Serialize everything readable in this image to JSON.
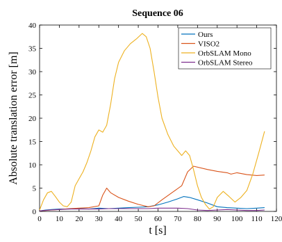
{
  "chart_data": {
    "type": "line",
    "title": "Sequence 06",
    "xlabel": "t [s]",
    "ylabel": "Absolute translation error [m]",
    "xlim": [
      0,
      120
    ],
    "ylim": [
      0,
      40
    ],
    "xticks": [
      0,
      10,
      20,
      30,
      40,
      50,
      60,
      70,
      80,
      90,
      100,
      110,
      120
    ],
    "yticks": [
      0,
      5,
      10,
      15,
      20,
      25,
      30,
      35,
      40
    ],
    "grid": false,
    "legend_position": "top-right",
    "series": [
      {
        "name": "Ours",
        "color": "#0072bd",
        "x": [
          0,
          3,
          6,
          10,
          15,
          20,
          25,
          30,
          35,
          40,
          45,
          50,
          55,
          60,
          65,
          70,
          73,
          76,
          80,
          85,
          90,
          95,
          100,
          105,
          110,
          114
        ],
        "y": [
          0.1,
          0.3,
          0.4,
          0.5,
          0.5,
          0.6,
          0.5,
          0.7,
          0.6,
          0.7,
          0.8,
          0.9,
          1.0,
          1.4,
          2.0,
          2.7,
          3.2,
          3.0,
          2.5,
          1.8,
          1.0,
          0.8,
          0.7,
          0.6,
          0.7,
          0.8
        ]
      },
      {
        "name": "VISO2",
        "color": "#d95319",
        "x": [
          0,
          3,
          6,
          10,
          15,
          20,
          25,
          30,
          32,
          34,
          36,
          40,
          45,
          50,
          55,
          58,
          62,
          67,
          72,
          75,
          78,
          85,
          90,
          95,
          97,
          100,
          105,
          110,
          114
        ],
        "y": [
          0.1,
          0.2,
          0.3,
          0.4,
          0.6,
          0.7,
          0.8,
          1.2,
          3.5,
          5.0,
          4.0,
          3.0,
          2.2,
          1.5,
          1.0,
          1.2,
          2.5,
          4.0,
          5.5,
          8.5,
          9.7,
          9.0,
          8.6,
          8.3,
          8.0,
          8.3,
          7.9,
          7.7,
          7.8
        ]
      },
      {
        "name": "OrbSLAM Mono",
        "color": "#edb120",
        "x": [
          0,
          2,
          4,
          6,
          8,
          10,
          12,
          14,
          16,
          18,
          20,
          22,
          24,
          26,
          28,
          30,
          32,
          34,
          36,
          38,
          40,
          43,
          46,
          49,
          52,
          54,
          56,
          58,
          60,
          62,
          65,
          68,
          70,
          72,
          74,
          76,
          78,
          80,
          82,
          84,
          86,
          88,
          90,
          93,
          96,
          99,
          102,
          105,
          108,
          111,
          114
        ],
        "y": [
          0.3,
          2.5,
          4.0,
          4.3,
          3.2,
          2.0,
          1.2,
          1.0,
          2.0,
          5.5,
          7.0,
          8.5,
          10.5,
          13.0,
          16.0,
          17.5,
          17.0,
          18.5,
          23.0,
          28.5,
          32.0,
          34.5,
          36.0,
          37.0,
          38.2,
          37.5,
          35.0,
          30.0,
          24.5,
          20.0,
          16.5,
          14.0,
          13.0,
          12.0,
          13.0,
          12.0,
          9.0,
          5.5,
          3.0,
          1.5,
          0.5,
          1.0,
          3.0,
          4.3,
          3.2,
          2.0,
          3.0,
          4.5,
          8.0,
          12.5,
          17.2
        ]
      },
      {
        "name": "OrbSLAM Stereo",
        "color": "#7e2f8e",
        "x": [
          0,
          5,
          10,
          15,
          20,
          25,
          30,
          35,
          40,
          45,
          50,
          55,
          60,
          65,
          70,
          75,
          80,
          85,
          90,
          95,
          100,
          105,
          110,
          114
        ],
        "y": [
          0.1,
          0.3,
          0.4,
          0.5,
          0.5,
          0.5,
          0.5,
          0.6,
          0.6,
          0.6,
          0.6,
          0.6,
          0.7,
          0.7,
          0.7,
          0.6,
          0.3,
          0.2,
          0.3,
          0.4,
          0.3,
          0.2,
          0.2,
          0.3
        ]
      }
    ]
  }
}
